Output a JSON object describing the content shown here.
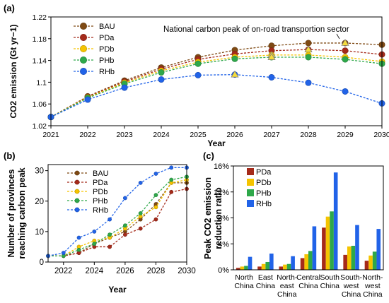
{
  "colors": {
    "BAU": "#7f4a14",
    "PDa": "#a52a1a",
    "PDb": "#f5c400",
    "PHb": "#2ea84a",
    "RHb": "#2163e8",
    "annotation_marker": "#f5dc3c"
  },
  "panels": {
    "a": {
      "label": "(a)"
    },
    "b": {
      "label": "(b)"
    },
    "c": {
      "label": "(c)"
    }
  },
  "chart_data": [
    {
      "type": "line",
      "panel": "a",
      "xlabel": "Year",
      "ylabel": "CO2 emission (Gt yr−1)",
      "x": [
        2021,
        2022,
        2023,
        2024,
        2025,
        2026,
        2027,
        2028,
        2029,
        2030
      ],
      "xlim": [
        2021,
        2030
      ],
      "ylim": [
        1.02,
        1.22
      ],
      "yticks": [
        1.02,
        1.06,
        1.1,
        1.14,
        1.18,
        1.22
      ],
      "ytick_labels": [
        "1.02",
        "1.06",
        "1.1",
        "1.14",
        "1.18",
        "1.22"
      ],
      "legend_position": "top-left",
      "annotation": "National carbon peak of on-road transportion sector",
      "series": [
        {
          "name": "BAU",
          "values": [
            1.036,
            1.074,
            1.103,
            1.127,
            1.146,
            1.159,
            1.167,
            1.172,
            1.172,
            1.169
          ]
        },
        {
          "name": "PDa",
          "values": [
            1.036,
            1.073,
            1.101,
            1.124,
            1.142,
            1.152,
            1.158,
            1.16,
            1.158,
            1.151
          ]
        },
        {
          "name": "PDb",
          "values": [
            1.036,
            1.072,
            1.099,
            1.121,
            1.137,
            1.146,
            1.15,
            1.15,
            1.146,
            1.138
          ]
        },
        {
          "name": "PHb",
          "values": [
            1.036,
            1.071,
            1.097,
            1.118,
            1.134,
            1.143,
            1.146,
            1.146,
            1.142,
            1.134
          ]
        },
        {
          "name": "RHb",
          "values": [
            1.036,
            1.068,
            1.09,
            1.105,
            1.113,
            1.114,
            1.109,
            1.099,
            1.083,
            1.061
          ]
        }
      ],
      "peak_markers": [
        {
          "series": "BAU",
          "x": 2029,
          "y": 1.172
        },
        {
          "series": "PDa",
          "x": 2028,
          "y": 1.16
        },
        {
          "series": "PDb",
          "x": 2027,
          "y": 1.15
        },
        {
          "series": "PHb",
          "x": 2027,
          "y": 1.146
        },
        {
          "series": "RHb",
          "x": 2026,
          "y": 1.114
        }
      ]
    },
    {
      "type": "line",
      "panel": "b",
      "xlabel": "Year",
      "ylabel": "Number of provinces reaching carbon peak",
      "x": [
        2021,
        2022,
        2023,
        2024,
        2025,
        2026,
        2027,
        2028,
        2029,
        2030
      ],
      "xlim": [
        2021,
        2030
      ],
      "xticks": [
        2022,
        2024,
        2026,
        2028,
        2030
      ],
      "ylim": [
        0,
        32
      ],
      "yticks": [
        0,
        10,
        20,
        30
      ],
      "legend_position": "top-left",
      "series": [
        {
          "name": "BAU",
          "values": [
            2,
            2,
            3,
            6,
            8,
            10,
            14,
            19,
            26,
            26
          ]
        },
        {
          "name": "PDa",
          "values": [
            2,
            2,
            3,
            5,
            5,
            9,
            11,
            14,
            23,
            24
          ]
        },
        {
          "name": "PDb",
          "values": [
            2,
            2,
            5,
            7,
            8,
            11,
            15,
            18,
            26,
            27
          ]
        },
        {
          "name": "PHb",
          "values": [
            2,
            2,
            4,
            6,
            9,
            12,
            16,
            22,
            27,
            28
          ]
        },
        {
          "name": "RHb",
          "values": [
            2,
            3,
            8,
            10,
            14,
            21,
            26,
            29,
            31,
            31
          ]
        }
      ]
    },
    {
      "type": "bar",
      "panel": "c",
      "ylabel": "Peak CO2 emission reduction ratio",
      "ylim": [
        0,
        16
      ],
      "yticks": [
        0,
        4,
        8,
        12,
        16
      ],
      "ytick_labels": [
        "0%",
        "4%",
        "8%",
        "12%",
        "16%"
      ],
      "legend_position": "top-left",
      "categories": [
        [
          "North",
          "China"
        ],
        [
          "East",
          "China"
        ],
        [
          "North-",
          "east",
          "China"
        ],
        [
          "Central",
          "China"
        ],
        [
          "South",
          "China"
        ],
        [
          "South-",
          "west",
          "China"
        ],
        [
          "North-",
          "west",
          "China"
        ]
      ],
      "series": [
        {
          "name": "PDa",
          "values": [
            0.3,
            0.5,
            0.5,
            1.8,
            6.5,
            2.3,
            1.4
          ]
        },
        {
          "name": "PDb",
          "values": [
            0.5,
            0.9,
            0.8,
            2.4,
            8.2,
            3.6,
            2.2
          ]
        },
        {
          "name": "PHb",
          "values": [
            0.6,
            1.2,
            0.9,
            2.9,
            9.0,
            3.7,
            2.8
          ]
        },
        {
          "name": "RHb",
          "values": [
            2.0,
            2.5,
            2.1,
            6.7,
            15.0,
            6.9,
            6.3
          ]
        }
      ]
    }
  ]
}
